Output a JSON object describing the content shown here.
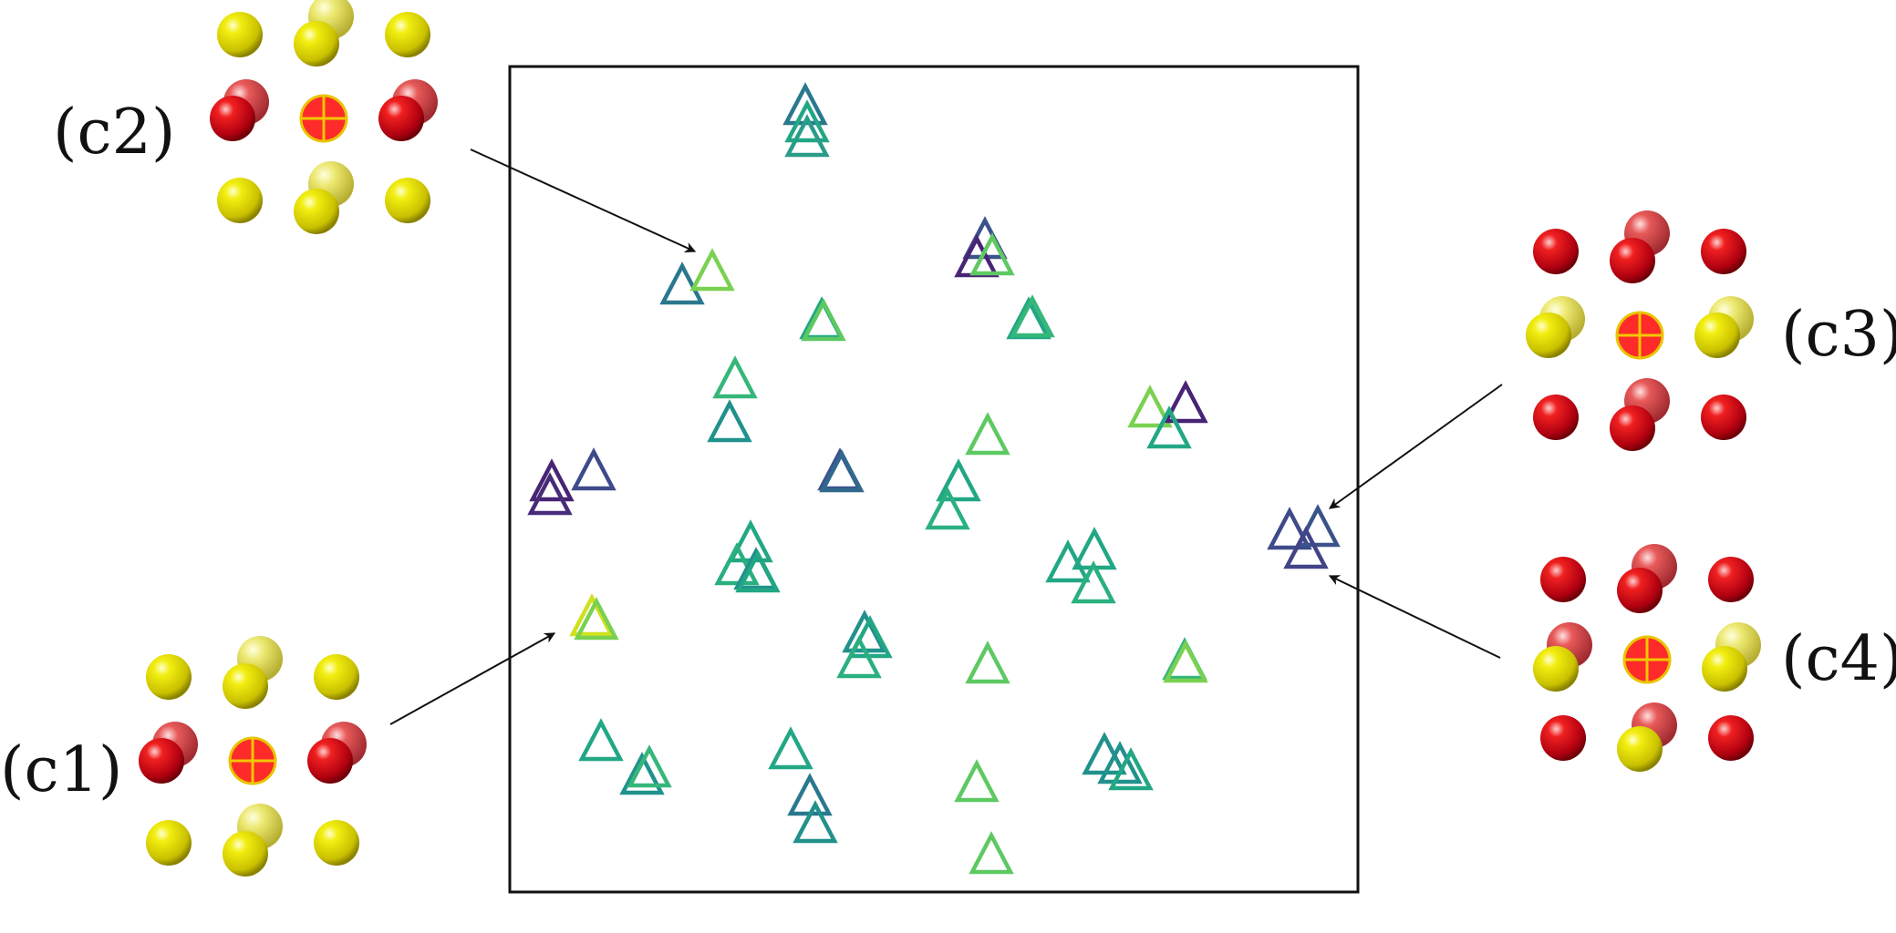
{
  "panels": [
    {
      "id": "c1",
      "label": "(c1)",
      "center_row": [
        "sphere-red",
        "site",
        "sphere-red"
      ],
      "corner_color": "yellow"
    },
    {
      "id": "c2",
      "label": "(c2)",
      "center_row": [
        "sphere-red",
        "site",
        "sphere-red"
      ],
      "corner_color": "yellow"
    },
    {
      "id": "c3",
      "label": "(c3)",
      "center_row": [
        "sphere-yellow",
        "site",
        "sphere-yellow"
      ],
      "corner_color": "red"
    },
    {
      "id": "c4",
      "label": "(c4)",
      "center_row": [
        "sphere-yellow",
        "site",
        "sphere-yellow"
      ],
      "corner_color": "red"
    }
  ],
  "colors": {
    "red": "#e0201e",
    "yellow": "#e8e000",
    "site": "#ff3030",
    "frame": "#111111",
    "arrow": "#111111",
    "viridis_low": "#440154",
    "viridis_mid": "#21918c",
    "viridis_high": "#b5de2b"
  },
  "markers": "open triangles colored by viridis colormap"
}
